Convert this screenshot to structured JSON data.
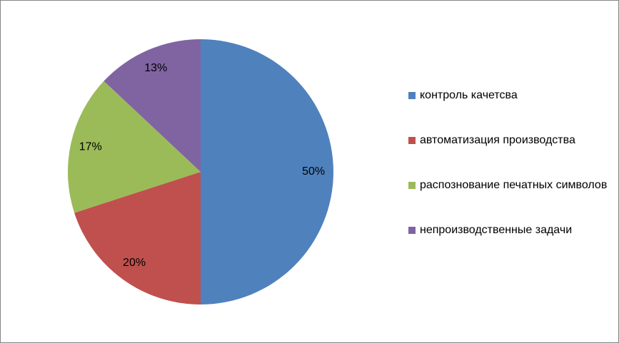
{
  "chart_data": {
    "type": "pie",
    "categories": [
      "контроль качетсва",
      "автоматизация производства",
      "распознование печатных символов",
      "непроизводственные задачи"
    ],
    "values": [
      50,
      20,
      17,
      13
    ],
    "value_labels": [
      "50%",
      "20%",
      "17%",
      "13%"
    ],
    "colors": [
      "#4f81bd",
      "#c0504d",
      "#9bbb59",
      "#8064a2"
    ],
    "legend": "right"
  }
}
